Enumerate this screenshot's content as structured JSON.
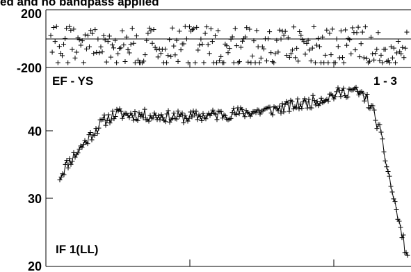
{
  "title": "ed and no bandpass applied",
  "chart_data": [
    {
      "type": "scatter",
      "panel": "phase",
      "label_left": "EF - YS",
      "label_right": "1 - 3",
      "yticks": [
        {
          "value": 200,
          "label": "200"
        },
        {
          "value": -200,
          "label": "-200"
        }
      ],
      "ylim": [
        -200,
        200
      ],
      "xlim": [
        0,
        250
      ],
      "zero_line": true,
      "seed": 7,
      "n_points": 250,
      "band_edges": [
        95,
        200
      ]
    },
    {
      "type": "line",
      "panel": "amplitude",
      "label": "IF 1(LL)",
      "yticks": [
        {
          "value": 40,
          "label": "40"
        },
        {
          "value": 30,
          "label": "30"
        },
        {
          "value": 20,
          "label": "20"
        }
      ],
      "ylim": [
        19.5,
        48
      ],
      "xlim": [
        0,
        250
      ],
      "seed": 11,
      "noise": 0.9,
      "profile_x": [
        0,
        5,
        15,
        25,
        32,
        40,
        60,
        90,
        120,
        150,
        180,
        200,
        210,
        220,
        225,
        230,
        240,
        250
      ],
      "profile_y": [
        33.2,
        35,
        37.5,
        40,
        41.5,
        42.5,
        42.3,
        42,
        42.5,
        43,
        44.2,
        45.5,
        46,
        45,
        43,
        40,
        30,
        21
      ]
    }
  ]
}
